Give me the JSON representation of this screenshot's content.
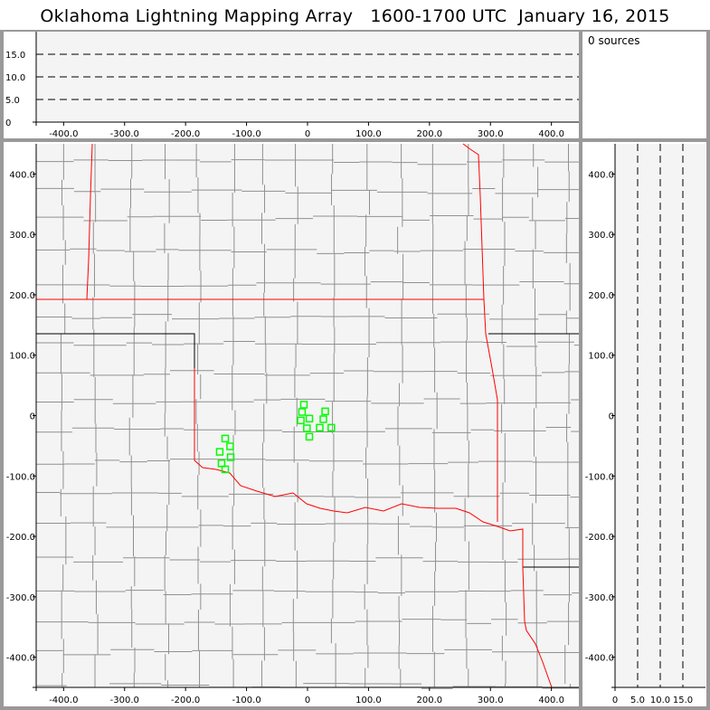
{
  "title": "Oklahoma Lightning Mapping Array   1600-1700 UTC  January 16, 2015",
  "sources_label": "0 sources",
  "colors": {
    "background": "#f4f4f4",
    "state_border": "#ff0000",
    "county_border": "#909090",
    "source_marker": "#00ff00",
    "frame": "#999999"
  },
  "chart_data": [
    {
      "type": "line",
      "panel": "altitude-vs-east-west",
      "xlim": [
        -445,
        445
      ],
      "ylim": [
        0,
        20
      ],
      "x_ticks": [
        "-400.0",
        "-300.0",
        "-200.0",
        "-100.0",
        "0",
        "100.0",
        "200.0",
        "300.0",
        "400.0"
      ],
      "x_tick_values": [
        -400,
        -300,
        -200,
        -100,
        0,
        100,
        200,
        300,
        400
      ],
      "y_ticks": [
        "0",
        "5.0",
        "10.0",
        "15.0"
      ],
      "y_tick_values": [
        0,
        5,
        10,
        15
      ],
      "dashed_gridlines": [
        5,
        10,
        15
      ]
    },
    {
      "type": "scatter",
      "panel": "plan-view-map",
      "xlim": [
        -445,
        445
      ],
      "ylim": [
        -450,
        450
      ],
      "x_ticks": [
        "-400.0",
        "-300.0",
        "-200.0",
        "-100.0",
        "0",
        "100.0",
        "200.0",
        "300.0",
        "400.0"
      ],
      "x_tick_values": [
        -400,
        -300,
        -200,
        -100,
        0,
        100,
        200,
        300,
        400
      ],
      "y_ticks": [
        "-400.0",
        "-300.0",
        "-200.0",
        "-100.0",
        "0",
        "100.0",
        "200.0",
        "300.0",
        "400.0"
      ],
      "y_tick_values": [
        -400,
        -300,
        -200,
        -100,
        0,
        100,
        200,
        300,
        400
      ],
      "marker": "hollow-square",
      "points": [
        [
          -6,
          18
        ],
        [
          -9,
          6
        ],
        [
          29,
          7
        ],
        [
          -11,
          -8
        ],
        [
          3,
          -5
        ],
        [
          26,
          -6
        ],
        [
          -1,
          -21
        ],
        [
          20,
          -20
        ],
        [
          39,
          -20
        ],
        [
          3,
          -35
        ],
        [
          -135,
          -38
        ],
        [
          -127,
          -51
        ],
        [
          -144,
          -60
        ],
        [
          -126,
          -69
        ],
        [
          -141,
          -79
        ],
        [
          -135,
          -89
        ]
      ]
    },
    {
      "type": "line",
      "panel": "north-south-vs-altitude",
      "xlim": [
        0,
        20
      ],
      "ylim": [
        -450,
        450
      ],
      "x_ticks": [
        "0",
        "5.0",
        "10.0",
        "15.0"
      ],
      "x_tick_values": [
        0,
        5,
        10,
        15
      ],
      "y_ticks": [
        "-400.0",
        "-300.0",
        "-200.0",
        "-100.0",
        "0",
        "100.0",
        "200.0",
        "300.0",
        "400.0"
      ],
      "y_tick_values": [
        -400,
        -300,
        -200,
        -100,
        0,
        100,
        200,
        300,
        400
      ],
      "dashed_gridlines": [
        5,
        10,
        15
      ]
    }
  ]
}
